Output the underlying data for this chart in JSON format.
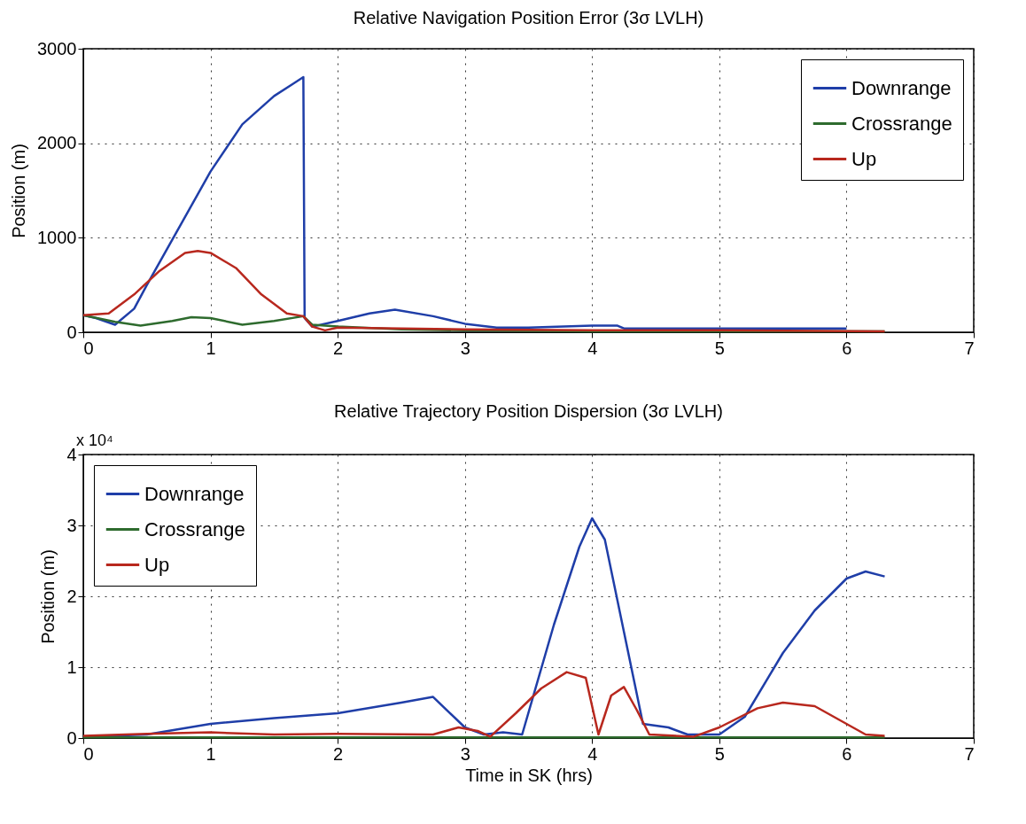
{
  "chart_data": [
    {
      "type": "line",
      "title": "Relative Navigation Position Error (3σ LVLH)",
      "ylabel": "Position (m)",
      "xlim": [
        0,
        7
      ],
      "xticks": [
        0,
        1,
        2,
        3,
        4,
        5,
        6,
        7
      ],
      "ylim": [
        0,
        3000
      ],
      "yticks": [
        0,
        1000,
        2000,
        3000
      ],
      "grid": true,
      "legend": "top right",
      "line_style": "solid",
      "marker": "none",
      "series": [
        {
          "name": "Downrange",
          "color": "#1f3ea8",
          "x": [
            0,
            0.1,
            0.25,
            0.4,
            0.5,
            0.75,
            1.0,
            1.25,
            1.5,
            1.65,
            1.73,
            1.74,
            1.8,
            2.0,
            2.25,
            2.45,
            2.75,
            3.0,
            3.25,
            3.5,
            4.0,
            4.2,
            4.25,
            5.0,
            5.5,
            6.0
          ],
          "values": [
            180,
            150,
            80,
            250,
            500,
            1100,
            1700,
            2200,
            2500,
            2630,
            2700,
            150,
            60,
            120,
            200,
            240,
            170,
            90,
            50,
            50,
            70,
            70,
            40,
            40,
            40,
            40
          ]
        },
        {
          "name": "Crossrange",
          "color": "#2e6b2e",
          "x": [
            0,
            0.25,
            0.45,
            0.7,
            0.85,
            1.0,
            1.25,
            1.5,
            1.73,
            1.8,
            2.0,
            2.5,
            3.0,
            4.0,
            5.0,
            6.3
          ],
          "values": [
            180,
            110,
            70,
            120,
            160,
            150,
            80,
            120,
            170,
            80,
            60,
            30,
            20,
            10,
            10,
            10
          ]
        },
        {
          "name": "Up",
          "color": "#b8281e",
          "x": [
            0,
            0.2,
            0.4,
            0.6,
            0.8,
            0.9,
            1.0,
            1.2,
            1.4,
            1.6,
            1.73,
            1.8,
            1.9,
            2.0,
            2.5,
            3.0,
            4.0,
            5.0,
            6.3
          ],
          "values": [
            180,
            200,
            400,
            650,
            840,
            860,
            840,
            680,
            400,
            200,
            170,
            60,
            20,
            50,
            40,
            30,
            20,
            20,
            10
          ]
        }
      ]
    },
    {
      "type": "line",
      "title": "Relative Trajectory Position Dispersion (3σ LVLH)",
      "xlabel": "Time in SK (hrs)",
      "ylabel": "Position (m)",
      "annotations": [
        "x 10⁴"
      ],
      "xlim": [
        0,
        7
      ],
      "xticks": [
        0,
        1,
        2,
        3,
        4,
        5,
        6,
        7
      ],
      "ylim": [
        0,
        4
      ],
      "yticks": [
        0,
        1,
        2,
        3,
        4
      ],
      "grid": true,
      "legend": "top left",
      "line_style": "solid",
      "marker": "none",
      "series": [
        {
          "name": "Downrange",
          "color": "#1f3ea8",
          "x": [
            0,
            0.5,
            1.0,
            1.5,
            2.0,
            2.5,
            2.75,
            3.0,
            3.15,
            3.3,
            3.45,
            3.7,
            3.9,
            4.0,
            4.1,
            4.25,
            4.4,
            4.6,
            4.75,
            5.0,
            5.2,
            5.5,
            5.75,
            6.0,
            6.15,
            6.3
          ],
          "values": [
            0.02,
            0.05,
            0.2,
            0.28,
            0.35,
            0.5,
            0.58,
            0.15,
            0.05,
            0.08,
            0.05,
            1.6,
            2.7,
            3.1,
            2.8,
            1.5,
            0.2,
            0.15,
            0.05,
            0.05,
            0.3,
            1.2,
            1.8,
            2.25,
            2.35,
            2.28
          ]
        },
        {
          "name": "Crossrange",
          "color": "#2e6b2e",
          "x": [
            0,
            1,
            2,
            3,
            4,
            5,
            6,
            6.3
          ],
          "values": [
            0.01,
            0.01,
            0.01,
            0.01,
            0.01,
            0.01,
            0.01,
            0.01
          ]
        },
        {
          "name": "Up",
          "color": "#b8281e",
          "x": [
            0,
            0.5,
            1.0,
            1.5,
            2.0,
            2.75,
            2.95,
            3.1,
            3.2,
            3.4,
            3.6,
            3.8,
            3.95,
            4.05,
            4.15,
            4.25,
            4.35,
            4.45,
            4.8,
            5.0,
            5.3,
            5.5,
            5.75,
            6.0,
            6.15,
            6.3
          ],
          "values": [
            0.03,
            0.06,
            0.08,
            0.05,
            0.06,
            0.05,
            0.15,
            0.1,
            0.02,
            0.35,
            0.7,
            0.93,
            0.85,
            0.05,
            0.6,
            0.72,
            0.4,
            0.05,
            0.02,
            0.15,
            0.42,
            0.5,
            0.45,
            0.2,
            0.05,
            0.03
          ]
        }
      ]
    }
  ]
}
